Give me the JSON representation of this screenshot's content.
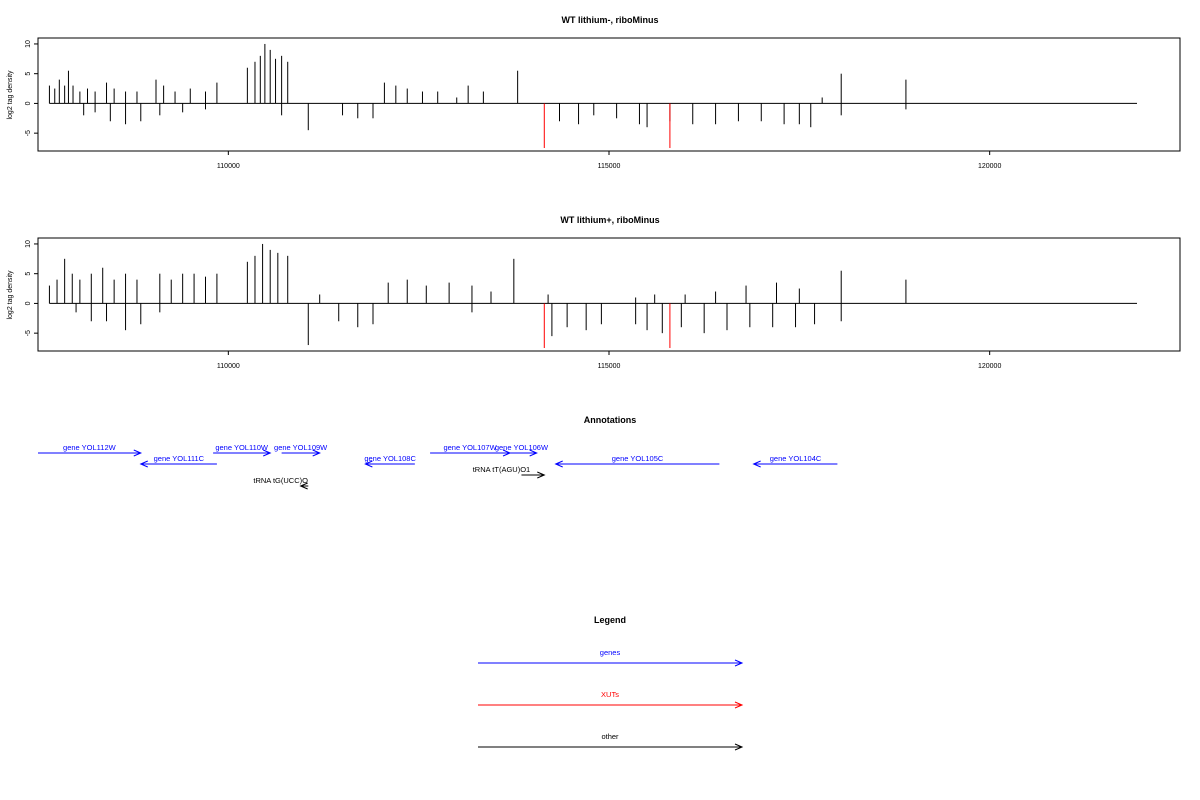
{
  "colors": {
    "gene": "#0000ff",
    "xut": "#ff0000",
    "other": "#000000",
    "signal": "#000000"
  },
  "chart_data": [
    {
      "type": "bar",
      "title": "WT lithium-, riboMinus",
      "ylabel": "log2 tag density",
      "xlim": [
        107500,
        122500
      ],
      "ylim": [
        -8,
        11
      ],
      "x_ticks": [
        110000,
        115000,
        120000
      ],
      "y_ticks": [
        10,
        5,
        0,
        -5
      ],
      "series": [
        {
          "strand": "plus",
          "color": "#000000",
          "points": [
            [
              107650,
              3
            ],
            [
              107720,
              2.5
            ],
            [
              107780,
              4
            ],
            [
              107850,
              3
            ],
            [
              107900,
              5.5
            ],
            [
              107960,
              3
            ],
            [
              108050,
              2
            ],
            [
              108150,
              2.5
            ],
            [
              108250,
              2
            ],
            [
              108400,
              3.5
            ],
            [
              108500,
              2.5
            ],
            [
              108650,
              2
            ],
            [
              108800,
              2
            ],
            [
              109050,
              4
            ],
            [
              109150,
              3
            ],
            [
              109300,
              2
            ],
            [
              109500,
              2.5
            ],
            [
              109700,
              2
            ],
            [
              109850,
              3.5
            ],
            [
              110250,
              6
            ],
            [
              110350,
              7
            ],
            [
              110420,
              8
            ],
            [
              110480,
              10
            ],
            [
              110550,
              9
            ],
            [
              110620,
              7.5
            ],
            [
              110700,
              8
            ],
            [
              110780,
              7
            ],
            [
              112050,
              3.5
            ],
            [
              112200,
              3
            ],
            [
              112350,
              2.5
            ],
            [
              112550,
              2
            ],
            [
              112750,
              2
            ],
            [
              113000,
              1
            ],
            [
              113150,
              3
            ],
            [
              113350,
              2
            ],
            [
              113800,
              5.5
            ],
            [
              117800,
              1
            ],
            [
              118050,
              5
            ],
            [
              118900,
              4
            ]
          ]
        },
        {
          "strand": "minus",
          "color": "#000000",
          "points": [
            [
              108100,
              -2
            ],
            [
              108250,
              -1.5
            ],
            [
              108450,
              -3
            ],
            [
              108650,
              -3.5
            ],
            [
              108850,
              -3
            ],
            [
              109100,
              -2
            ],
            [
              109400,
              -1.5
            ],
            [
              109700,
              -1
            ],
            [
              110700,
              -2
            ],
            [
              111050,
              -4.5
            ],
            [
              111500,
              -2
            ],
            [
              111700,
              -2.5
            ],
            [
              111900,
              -2.5
            ],
            [
              114350,
              -3
            ],
            [
              114600,
              -3.5
            ],
            [
              114800,
              -2
            ],
            [
              115100,
              -2.5
            ],
            [
              115400,
              -3.5
            ],
            [
              115500,
              -4
            ],
            [
              115800,
              -3
            ],
            [
              116100,
              -3.5
            ],
            [
              116400,
              -3.5
            ],
            [
              116700,
              -3
            ],
            [
              117000,
              -3
            ],
            [
              117300,
              -3.5
            ],
            [
              117500,
              -3.5
            ],
            [
              117650,
              -4
            ],
            [
              118050,
              -2
            ],
            [
              118900,
              -1
            ]
          ]
        },
        {
          "strand": "minus",
          "name": "XUTs",
          "color": "#ff0000",
          "points": [
            [
              114150,
              -7.5
            ],
            [
              115800,
              -7.5
            ]
          ]
        }
      ]
    },
    {
      "type": "bar",
      "title": "WT lithium+, riboMinus",
      "ylabel": "log2 tag density",
      "xlim": [
        107500,
        122500
      ],
      "ylim": [
        -8,
        11
      ],
      "x_ticks": [
        110000,
        115000,
        120000
      ],
      "y_ticks": [
        10,
        5,
        0,
        -5
      ],
      "series": [
        {
          "strand": "plus",
          "color": "#000000",
          "points": [
            [
              107650,
              3
            ],
            [
              107750,
              4
            ],
            [
              107850,
              7.5
            ],
            [
              107950,
              5
            ],
            [
              108050,
              4
            ],
            [
              108200,
              5
            ],
            [
              108350,
              6
            ],
            [
              108500,
              4
            ],
            [
              108650,
              5
            ],
            [
              108800,
              4
            ],
            [
              109100,
              5
            ],
            [
              109250,
              4
            ],
            [
              109400,
              5
            ],
            [
              109550,
              5
            ],
            [
              109700,
              4.5
            ],
            [
              109850,
              5
            ],
            [
              110250,
              7
            ],
            [
              110350,
              8
            ],
            [
              110450,
              10
            ],
            [
              110550,
              9
            ],
            [
              110650,
              8.5
            ],
            [
              110780,
              8
            ],
            [
              111200,
              1.5
            ],
            [
              112100,
              3.5
            ],
            [
              112350,
              4
            ],
            [
              112600,
              3
            ],
            [
              112900,
              3.5
            ],
            [
              113200,
              3
            ],
            [
              113450,
              2
            ],
            [
              113750,
              7.5
            ],
            [
              114200,
              1.5
            ],
            [
              115350,
              1
            ],
            [
              115600,
              1.5
            ],
            [
              116000,
              1.5
            ],
            [
              116400,
              2
            ],
            [
              116800,
              3
            ],
            [
              117200,
              3.5
            ],
            [
              117500,
              2.5
            ],
            [
              118050,
              5.5
            ],
            [
              118900,
              4
            ]
          ]
        },
        {
          "strand": "minus",
          "color": "#000000",
          "points": [
            [
              108000,
              -1.5
            ],
            [
              108200,
              -3
            ],
            [
              108400,
              -3
            ],
            [
              108650,
              -4.5
            ],
            [
              108850,
              -3.5
            ],
            [
              109100,
              -1.5
            ],
            [
              111050,
              -7
            ],
            [
              111450,
              -3
            ],
            [
              111700,
              -4
            ],
            [
              111900,
              -3.5
            ],
            [
              113200,
              -1.5
            ],
            [
              114250,
              -5.5
            ],
            [
              114450,
              -4
            ],
            [
              114700,
              -4.5
            ],
            [
              114900,
              -3.5
            ],
            [
              115350,
              -3.5
            ],
            [
              115500,
              -4.5
            ],
            [
              115700,
              -5
            ],
            [
              115950,
              -4
            ],
            [
              116250,
              -5
            ],
            [
              116550,
              -4.5
            ],
            [
              116850,
              -4
            ],
            [
              117150,
              -4
            ],
            [
              117450,
              -4
            ],
            [
              117700,
              -3.5
            ],
            [
              118050,
              -3
            ]
          ]
        },
        {
          "strand": "minus",
          "name": "XUTs",
          "color": "#ff0000",
          "points": [
            [
              114150,
              -7.5
            ],
            [
              115800,
              -7.5
            ]
          ]
        }
      ]
    }
  ],
  "annotations": {
    "title": "Annotations",
    "features": [
      {
        "label": "gene YOL112W",
        "type": "gene",
        "start": 107500,
        "end": 108850,
        "strand": "+",
        "row": 0
      },
      {
        "label": "gene YOL111C",
        "type": "gene",
        "start": 108850,
        "end": 109850,
        "strand": "-",
        "row": 1
      },
      {
        "label": "gene YOL110W",
        "type": "gene",
        "start": 109800,
        "end": 110550,
        "strand": "+",
        "row": 0
      },
      {
        "label": "gene YOL109W",
        "type": "gene",
        "start": 110700,
        "end": 111200,
        "strand": "+",
        "row": 0
      },
      {
        "label": "gene YOL108C",
        "type": "gene",
        "start": 111800,
        "end": 112450,
        "strand": "-",
        "row": 1
      },
      {
        "label": "gene YOL107W",
        "type": "gene",
        "start": 112650,
        "end": 113700,
        "strand": "+",
        "row": 0
      },
      {
        "label": "gene YOL106W",
        "type": "gene",
        "start": 113650,
        "end": 114050,
        "strand": "+",
        "row": 0
      },
      {
        "label": "gene YOL105C",
        "type": "gene",
        "start": 114300,
        "end": 116450,
        "strand": "-",
        "row": 1
      },
      {
        "label": "gene YOL104C",
        "type": "gene",
        "start": 116900,
        "end": 118000,
        "strand": "-",
        "row": 1
      },
      {
        "label": "tRNA tT(AGU)O1",
        "type": "other",
        "start": 113850,
        "end": 114150,
        "strand": "+",
        "row": 2
      },
      {
        "label": "tRNA tG(UCC)O",
        "type": "other",
        "start": 110950,
        "end": 111050,
        "strand": "-",
        "row": 3
      }
    ]
  },
  "legend": {
    "title": "Legend",
    "items": [
      {
        "label": "genes",
        "type": "gene"
      },
      {
        "label": "XUTs",
        "type": "xut"
      },
      {
        "label": "other",
        "type": "other"
      }
    ]
  }
}
